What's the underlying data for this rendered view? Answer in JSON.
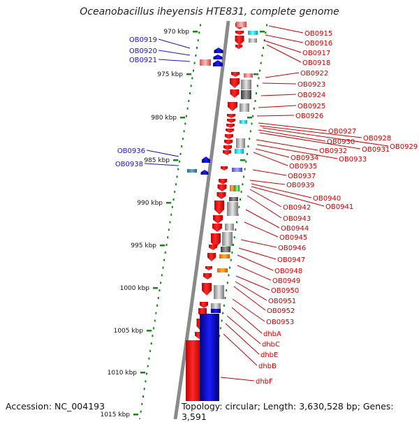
{
  "title": "Oceanobacillus iheyensis HTE831, complete genome",
  "accession": "Accession: NC_004193",
  "topology": "Topology: circular; Length: 3,630,528 bp; Genes: 3,591",
  "colors": {
    "plus_strand_labels": "#1a14cc",
    "minus_strand_labels": "#cc0000",
    "scale_ticks": "#118811",
    "backbone": "#8a8a8a",
    "plus_gene": "#1010ee",
    "minus_gene": "#ee1111"
  },
  "scale_ticks": [
    {
      "label": "970 kbp"
    },
    {
      "label": "975 kbp"
    },
    {
      "label": "980 kbp"
    },
    {
      "label": "985 kbp"
    },
    {
      "label": "990 kbp"
    },
    {
      "label": "995 kbp"
    },
    {
      "label": "1000 kbp"
    },
    {
      "label": "1005 kbp"
    },
    {
      "label": "1010 kbp"
    },
    {
      "label": "1015 kbp"
    }
  ],
  "plus_labels": [
    "OB0919",
    "OB0920",
    "OB0921",
    "OB0936",
    "OB0938"
  ],
  "minus_labels": [
    "OB0915",
    "OB0916",
    "OB0917",
    "OB0918",
    "OB0922",
    "OB0923",
    "OB0924",
    "OB0925",
    "OB0926",
    "OB0927",
    "OB0928",
    "OB0929",
    "OB0930",
    "OB0931",
    "OB0932",
    "OB0933",
    "OB0934",
    "OB0935",
    "OB0937",
    "OB0939",
    "OB0940",
    "OB0941",
    "OB0942",
    "OB0943",
    "OB0944",
    "OB0945",
    "OB0946",
    "OB0947",
    "OB0948",
    "OB0949",
    "OB0950",
    "OB0951",
    "OB0952",
    "OB0953",
    "dhbA",
    "dhbC",
    "dhbE",
    "dhbB",
    "dhbF"
  ]
}
